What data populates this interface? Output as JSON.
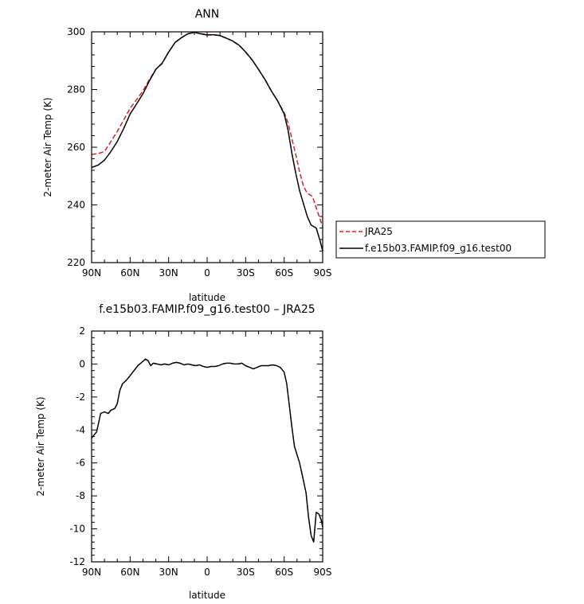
{
  "chart_data": [
    {
      "type": "line",
      "title": "ANN",
      "xlabel": "latitude",
      "ylabel": "2-meter Air Temp (K)",
      "xlim": [
        90,
        -90
      ],
      "ylim": [
        220,
        300
      ],
      "x_ticks": [
        {
          "value": 90,
          "label": "90N"
        },
        {
          "value": 60,
          "label": "60N"
        },
        {
          "value": 30,
          "label": "30N"
        },
        {
          "value": 0,
          "label": "0"
        },
        {
          "value": -30,
          "label": "30S"
        },
        {
          "value": -60,
          "label": "60S"
        },
        {
          "value": -90,
          "label": "90S"
        }
      ],
      "y_ticks": [
        220,
        240,
        260,
        280,
        300
      ],
      "grid": false,
      "legend_position": "right",
      "series": [
        {
          "name": "JRA25",
          "color": "#e02020",
          "dash": "dashed",
          "points": [
            [
              90,
              257.5
            ],
            [
              85,
              257.8
            ],
            [
              80,
              258.5
            ],
            [
              75,
              262
            ],
            [
              70,
              265.5
            ],
            [
              65,
              269.5
            ],
            [
              60,
              273.5
            ],
            [
              55,
              276.5
            ],
            [
              50,
              279.5
            ],
            [
              45,
              283.5
            ],
            [
              40,
              287
            ],
            [
              35,
              289
            ],
            [
              30,
              293
            ],
            [
              25,
              296.3
            ],
            [
              20,
              298
            ],
            [
              15,
              299.3
            ],
            [
              10,
              299.9
            ],
            [
              5,
              299.4
            ],
            [
              0,
              299
            ],
            [
              -5,
              299
            ],
            [
              -10,
              298.7
            ],
            [
              -15,
              297.8
            ],
            [
              -20,
              296.8
            ],
            [
              -25,
              295.3
            ],
            [
              -30,
              293
            ],
            [
              -35,
              290.3
            ],
            [
              -40,
              287
            ],
            [
              -45,
              283.5
            ],
            [
              -50,
              279.5
            ],
            [
              -55,
              276
            ],
            [
              -60,
              272
            ],
            [
              -63,
              268.5
            ],
            [
              -66,
              263
            ],
            [
              -69,
              257.5
            ],
            [
              -72,
              251.5
            ],
            [
              -75,
              246.5
            ],
            [
              -78,
              244
            ],
            [
              -82,
              243
            ],
            [
              -85,
              239
            ],
            [
              -88,
              235
            ],
            [
              -90,
              232.5
            ]
          ]
        },
        {
          "name": "f.e15b03.FAMIP.f09_g16.test00",
          "color": "#000000",
          "dash": "solid",
          "points": [
            [
              90,
              253
            ],
            [
              85,
              253.8
            ],
            [
              80,
              255.5
            ],
            [
              75,
              258.5
            ],
            [
              70,
              262
            ],
            [
              65,
              266.5
            ],
            [
              60,
              271.5
            ],
            [
              55,
              275
            ],
            [
              50,
              278.5
            ],
            [
              45,
              283
            ],
            [
              40,
              287
            ],
            [
              35,
              289.2
            ],
            [
              30,
              293
            ],
            [
              25,
              296.3
            ],
            [
              20,
              298
            ],
            [
              15,
              299.3
            ],
            [
              10,
              299.8
            ],
            [
              5,
              299.3
            ],
            [
              0,
              298.9
            ],
            [
              -5,
              299
            ],
            [
              -10,
              298.7
            ],
            [
              -15,
              297.8
            ],
            [
              -20,
              296.8
            ],
            [
              -25,
              295.3
            ],
            [
              -30,
              293
            ],
            [
              -35,
              290.3
            ],
            [
              -40,
              287
            ],
            [
              -45,
              283.5
            ],
            [
              -50,
              279.5
            ],
            [
              -55,
              276
            ],
            [
              -60,
              271.5
            ],
            [
              -63,
              266
            ],
            [
              -66,
              258
            ],
            [
              -69,
              251
            ],
            [
              -72,
              245
            ],
            [
              -75,
              240.5
            ],
            [
              -78,
              236
            ],
            [
              -81,
              233
            ],
            [
              -85,
              232
            ],
            [
              -88,
              227.5
            ],
            [
              -90,
              224
            ]
          ]
        }
      ]
    },
    {
      "type": "line",
      "title": "f.e15b03.FAMIP.f09_g16.test00 – JRA25",
      "xlabel": "latitude",
      "ylabel": "2-meter Air Temp (K)",
      "xlim": [
        90,
        -90
      ],
      "ylim": [
        -12,
        2
      ],
      "x_ticks": [
        {
          "value": 90,
          "label": "90N"
        },
        {
          "value": 60,
          "label": "60N"
        },
        {
          "value": 30,
          "label": "30N"
        },
        {
          "value": 0,
          "label": "0"
        },
        {
          "value": -30,
          "label": "30S"
        },
        {
          "value": -60,
          "label": "60S"
        },
        {
          "value": -90,
          "label": "90S"
        }
      ],
      "y_ticks": [
        -12,
        -10,
        -8,
        -6,
        -4,
        -2,
        0,
        2
      ],
      "grid": false,
      "series": [
        {
          "color": "#000000",
          "dash": "solid",
          "points": [
            [
              90,
              -4.5
            ],
            [
              86,
              -4.1
            ],
            [
              83,
              -3.0
            ],
            [
              80,
              -2.9
            ],
            [
              77,
              -3.0
            ],
            [
              75,
              -2.8
            ],
            [
              72,
              -2.7
            ],
            [
              70,
              -2.4
            ],
            [
              68,
              -1.6
            ],
            [
              66,
              -1.2
            ],
            [
              63,
              -1.0
            ],
            [
              60,
              -0.7
            ],
            [
              57,
              -0.4
            ],
            [
              54,
              -0.1
            ],
            [
              51,
              0.1
            ],
            [
              48,
              0.3
            ],
            [
              46,
              0.2
            ],
            [
              44,
              -0.1
            ],
            [
              42,
              0.05
            ],
            [
              39,
              0.0
            ],
            [
              36,
              -0.05
            ],
            [
              33,
              0.0
            ],
            [
              30,
              -0.05
            ],
            [
              27,
              0.05
            ],
            [
              24,
              0.1
            ],
            [
              21,
              0.05
            ],
            [
              18,
              -0.05
            ],
            [
              15,
              0.0
            ],
            [
              12,
              -0.05
            ],
            [
              9,
              -0.1
            ],
            [
              6,
              -0.05
            ],
            [
              3,
              -0.15
            ],
            [
              0,
              -0.2
            ],
            [
              -3,
              -0.15
            ],
            [
              -6,
              -0.15
            ],
            [
              -9,
              -0.1
            ],
            [
              -12,
              0.0
            ],
            [
              -15,
              0.05
            ],
            [
              -18,
              0.05
            ],
            [
              -21,
              0.0
            ],
            [
              -24,
              0.0
            ],
            [
              -27,
              0.05
            ],
            [
              -30,
              -0.1
            ],
            [
              -33,
              -0.2
            ],
            [
              -36,
              -0.3
            ],
            [
              -39,
              -0.2
            ],
            [
              -42,
              -0.1
            ],
            [
              -45,
              -0.1
            ],
            [
              -48,
              -0.1
            ],
            [
              -51,
              -0.05
            ],
            [
              -54,
              -0.1
            ],
            [
              -57,
              -0.2
            ],
            [
              -60,
              -0.5
            ],
            [
              -62,
              -1.2
            ],
            [
              -64,
              -2.5
            ],
            [
              -66,
              -3.8
            ],
            [
              -68,
              -5.0
            ],
            [
              -70,
              -5.5
            ],
            [
              -72,
              -6.0
            ],
            [
              -74,
              -6.7
            ],
            [
              -77,
              -7.8
            ],
            [
              -79,
              -9.3
            ],
            [
              -81,
              -10.4
            ],
            [
              -83,
              -10.8
            ],
            [
              -85,
              -9.0
            ],
            [
              -87,
              -9.1
            ],
            [
              -89,
              -9.5
            ],
            [
              -90,
              -9.9
            ]
          ]
        }
      ]
    }
  ]
}
